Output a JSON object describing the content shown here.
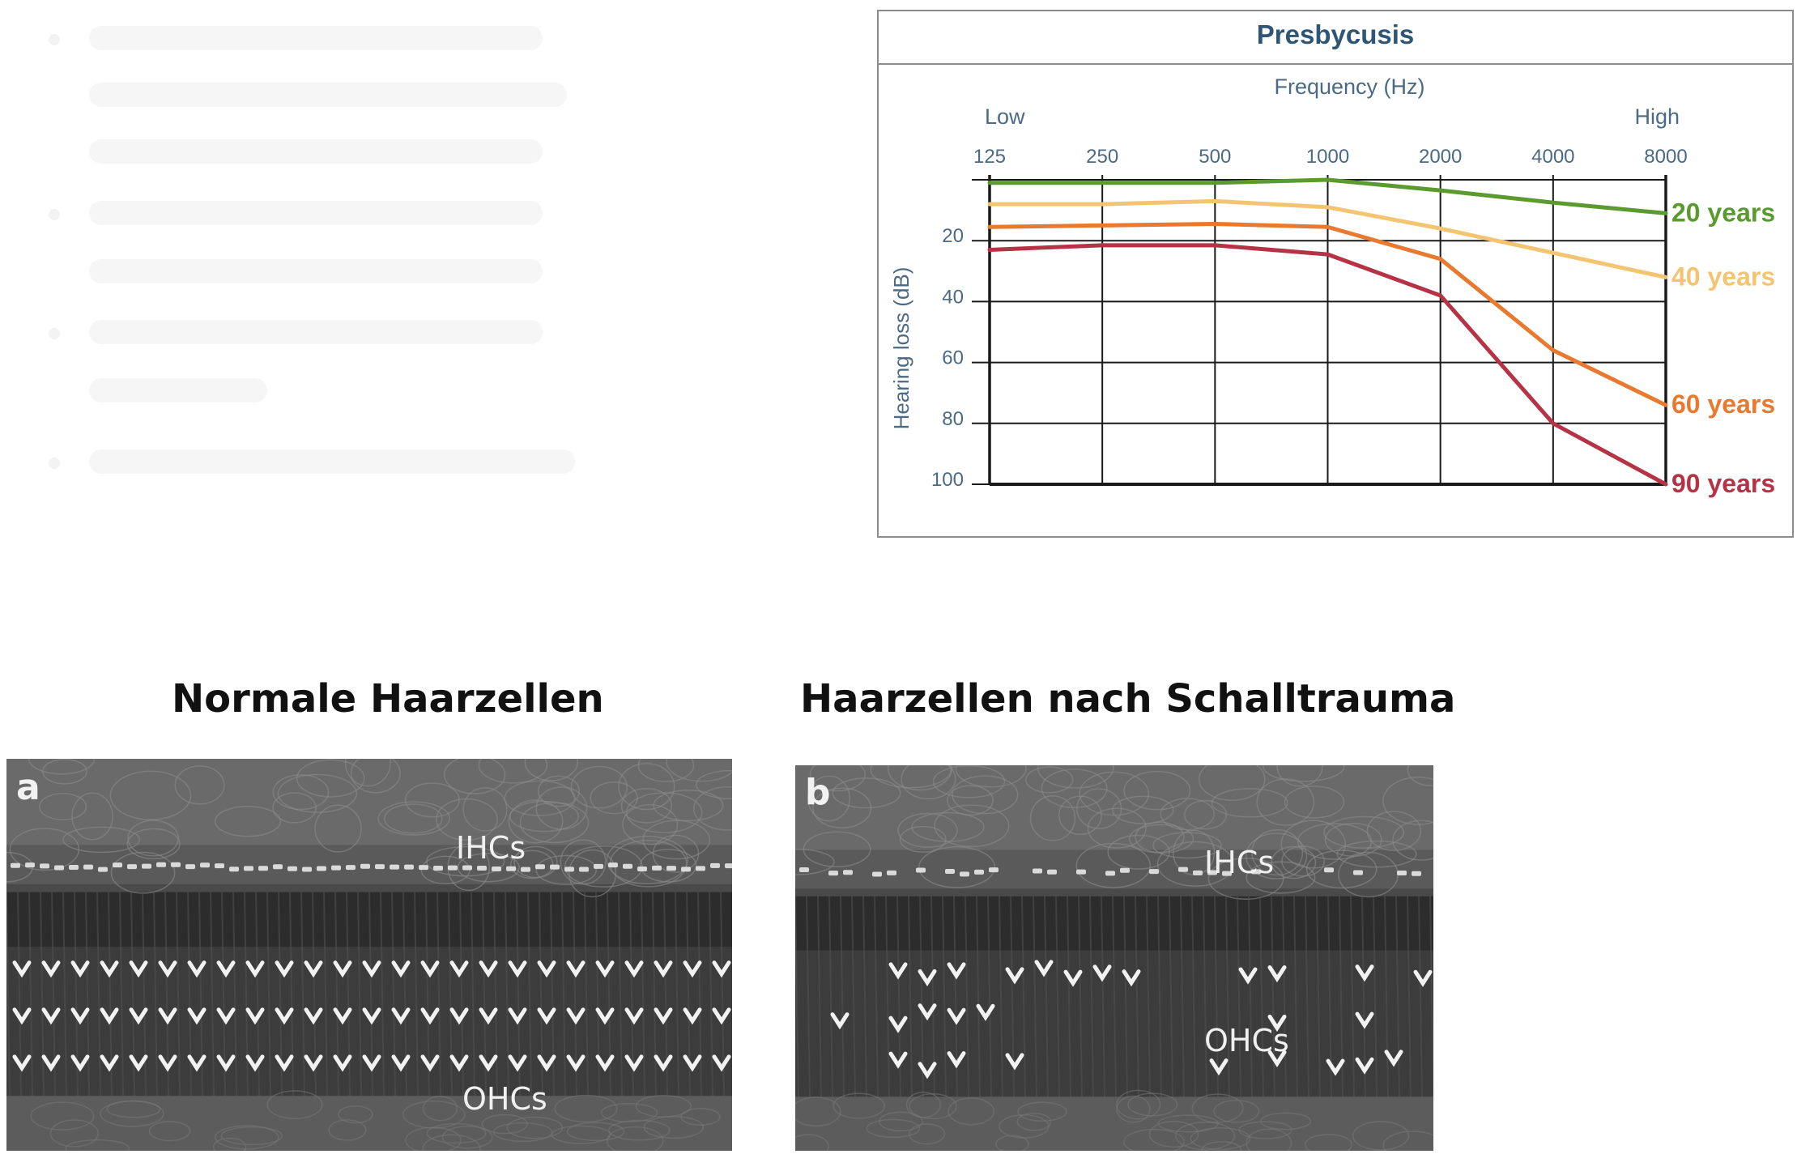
{
  "colors": {
    "title": "#2f5674",
    "axis_text": "#4a6a85",
    "grid": "#1a1a1a",
    "series_20": "#5a9a2e",
    "series_40": "#f3c572",
    "series_60": "#e8792f",
    "series_90": "#b53345"
  },
  "chart_data": {
    "type": "line",
    "title": "Presbycusis",
    "xlabel": "Frequency (Hz)",
    "x_low_label": "Low",
    "x_high_label": "High",
    "x": [
      "125",
      "250",
      "500",
      "1000",
      "2000",
      "4000",
      "8000"
    ],
    "x_scale": "log",
    "ylabel": "Hearing loss (dB)",
    "y_ticks": [
      "20",
      "40",
      "60",
      "80",
      "100"
    ],
    "ylim": [
      0,
      100
    ],
    "y_inverted": true,
    "grid": true,
    "series": [
      {
        "name": "20 years",
        "values": [
          1,
          1,
          1,
          0,
          3.5,
          7.5,
          11
        ]
      },
      {
        "name": "40 years",
        "values": [
          8,
          8,
          7,
          9,
          16,
          24,
          32
        ]
      },
      {
        "name": "60 years",
        "values": [
          15.5,
          15,
          14.5,
          15.5,
          26,
          56,
          74
        ]
      },
      {
        "name": "90 years",
        "values": [
          23,
          21.5,
          21.5,
          24.5,
          38,
          80,
          100
        ]
      }
    ]
  },
  "figure": {
    "caption_left": "Normale Haarzellen",
    "caption_right": "Haarzellen nach Schalltrauma",
    "panel_a": {
      "letter": "a",
      "ihc_label": "IHCs",
      "ohc_label": "OHCs"
    },
    "panel_b": {
      "letter": "b",
      "ihc_label": "IHCs",
      "ohc_label": "OHCs"
    }
  }
}
